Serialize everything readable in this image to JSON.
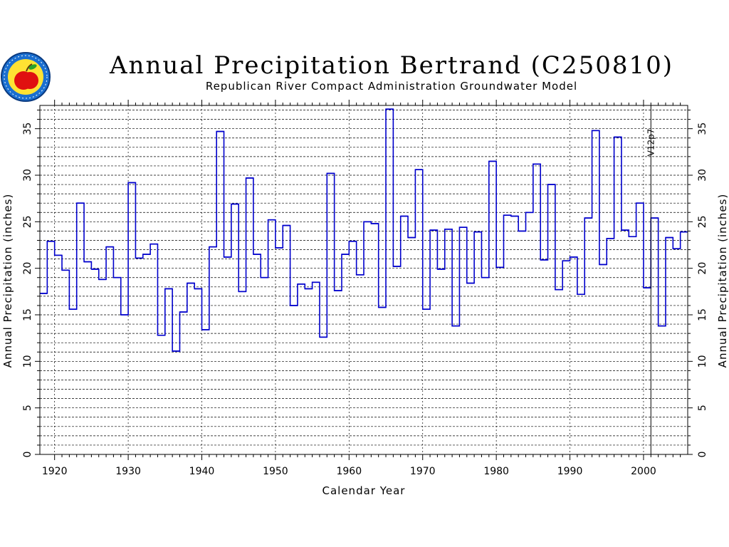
{
  "header": {
    "title": "Annual Precipitation Bertrand (C250810)",
    "subtitle": "Republican River Compact Administration Groundwater Model",
    "logo_icon": "apple-seal-icon"
  },
  "colors": {
    "series": "#0000cc",
    "grid": "#000000",
    "axis": "#000000"
  },
  "chart_data": {
    "type": "line",
    "step": true,
    "title": "Annual Precipitation Bertrand (C250810)",
    "xlabel": "Calendar Year",
    "ylabel": "Annual Precipitation (inches)",
    "ylabel_right": "Annual Precipitation (inches)",
    "xlim": [
      1918,
      2006
    ],
    "ylim": [
      0,
      37.5
    ],
    "x_ticks": [
      1920,
      1930,
      1940,
      1950,
      1960,
      1970,
      1980,
      1990,
      2000
    ],
    "y_ticks": [
      0,
      5,
      10,
      15,
      20,
      25,
      30,
      35
    ],
    "grid": true,
    "annotations": [
      {
        "x": 2001,
        "text": "V12p7"
      }
    ],
    "series": [
      {
        "x": [
          1918,
          1919,
          1920,
          1921,
          1922,
          1923,
          1924,
          1925,
          1926,
          1927,
          1928,
          1929,
          1930,
          1931,
          1932,
          1933,
          1934,
          1935,
          1936,
          1937,
          1938,
          1939,
          1940,
          1941,
          1942,
          1943,
          1944,
          1945,
          1946,
          1947,
          1948,
          1949,
          1950,
          1951,
          1952,
          1953,
          1954,
          1955,
          1956,
          1957,
          1958,
          1959,
          1960,
          1961,
          1962,
          1963,
          1964,
          1965,
          1966,
          1967,
          1968,
          1969,
          1970,
          1971,
          1972,
          1973,
          1974,
          1975,
          1976,
          1977,
          1978,
          1979,
          1980,
          1981,
          1982,
          1983,
          1984,
          1985,
          1986,
          1987,
          1988,
          1989,
          1990,
          1991,
          1992,
          1993,
          1994,
          1995,
          1996,
          1997,
          1998,
          1999,
          2000,
          2001,
          2002,
          2003,
          2004,
          2005
        ],
        "values": [
          17.3,
          22.9,
          21.4,
          19.8,
          15.6,
          27.0,
          20.7,
          19.9,
          18.8,
          22.3,
          19.0,
          15.0,
          29.2,
          21.1,
          21.5,
          22.6,
          12.8,
          17.8,
          11.1,
          15.3,
          18.4,
          17.8,
          13.4,
          22.3,
          34.7,
          21.2,
          26.9,
          17.5,
          29.7,
          21.5,
          19.0,
          25.2,
          22.2,
          24.6,
          16.0,
          18.3,
          17.8,
          18.5,
          12.6,
          30.2,
          17.6,
          21.5,
          22.9,
          19.3,
          25.0,
          24.8,
          15.8,
          37.1,
          20.2,
          25.6,
          23.3,
          30.6,
          15.6,
          24.1,
          19.9,
          24.2,
          13.8,
          24.4,
          18.4,
          23.9,
          19.0,
          31.5,
          20.1,
          25.7,
          25.6,
          24.0,
          26.0,
          31.2,
          20.9,
          29.0,
          17.7,
          20.8,
          21.2,
          17.2,
          25.4,
          34.8,
          20.4,
          23.2,
          34.1,
          24.1,
          23.4,
          27.0,
          17.9,
          25.4,
          13.8,
          23.3,
          22.1,
          23.9
        ]
      }
    ]
  }
}
